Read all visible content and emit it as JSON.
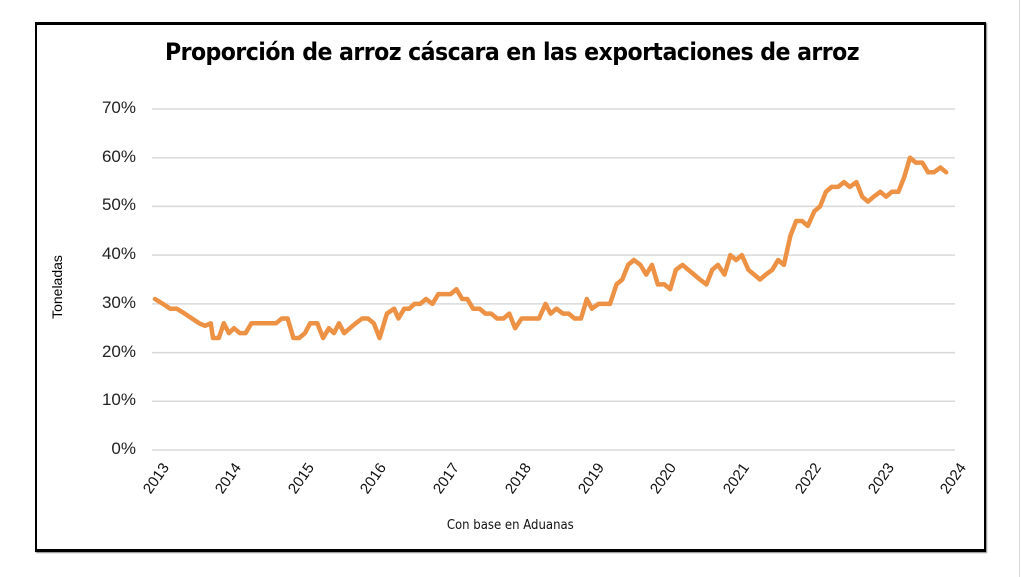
{
  "chart_data": {
    "type": "line",
    "title": "Proporción de arroz cáscara en las exportaciones de arroz",
    "xlabel": "Con base en Aduanas",
    "ylabel": "Toneladas",
    "ylim": [
      0,
      70
    ],
    "xlim": [
      2013,
      2024
    ],
    "grid": true,
    "legend": "none",
    "y_ticks": [
      "0%",
      "10%",
      "20%",
      "30%",
      "40%",
      "50%",
      "60%",
      "70%"
    ],
    "y_tick_values": [
      0,
      10,
      20,
      30,
      40,
      50,
      60,
      70
    ],
    "x_ticks": [
      "2013",
      "2014",
      "2015",
      "2016",
      "2017",
      "2018",
      "2019",
      "2020",
      "2021",
      "2022",
      "2023",
      "2024"
    ],
    "x_tick_values": [
      2013,
      2014,
      2015,
      2016,
      2017,
      2018,
      2019,
      2020,
      2021,
      2022,
      2023,
      2024
    ],
    "series": [
      {
        "name": "Proporción arroz cáscara (%)",
        "color": "#ED9145",
        "x": [
          2013.0,
          2013.11,
          2013.21,
          2013.3,
          2013.41,
          2013.51,
          2013.61,
          2013.69,
          2013.77,
          2013.8,
          2013.88,
          2013.95,
          2014.02,
          2014.09,
          2014.17,
          2014.25,
          2014.33,
          2014.42,
          2014.5,
          2014.58,
          2014.67,
          2014.75,
          2014.83,
          2014.91,
          2014.99,
          2015.07,
          2015.14,
          2015.24,
          2015.32,
          2015.4,
          2015.47,
          2015.54,
          2015.61,
          2015.69,
          2015.77,
          2015.86,
          2015.94,
          2016.02,
          2016.1,
          2016.2,
          2016.3,
          2016.36,
          2016.44,
          2016.51,
          2016.58,
          2016.66,
          2016.74,
          2016.83,
          2016.91,
          2016.99,
          2017.08,
          2017.16,
          2017.24,
          2017.31,
          2017.39,
          2017.48,
          2017.56,
          2017.64,
          2017.72,
          2017.81,
          2017.89,
          2017.97,
          2018.06,
          2018.14,
          2018.22,
          2018.3,
          2018.39,
          2018.46,
          2018.54,
          2018.63,
          2018.71,
          2018.79,
          2018.88,
          2018.96,
          2019.03,
          2019.12,
          2019.2,
          2019.28,
          2019.37,
          2019.45,
          2019.53,
          2019.61,
          2019.7,
          2019.78,
          2019.86,
          2019.94,
          2020.03,
          2020.11,
          2020.19,
          2020.28,
          2020.36,
          2020.44,
          2020.52,
          2020.61,
          2020.69,
          2020.77,
          2020.86,
          2020.94,
          2021.02,
          2021.1,
          2021.19,
          2021.27,
          2021.35,
          2021.43,
          2021.52,
          2021.6,
          2021.68,
          2021.77,
          2021.85,
          2021.93,
          2022.01,
          2022.1,
          2022.18,
          2022.26,
          2022.34,
          2022.43,
          2022.51,
          2022.59,
          2022.68,
          2022.76,
          2022.84,
          2022.92,
          2023.01,
          2023.09,
          2023.17,
          2023.26,
          2023.34,
          2023.42,
          2023.5,
          2023.59,
          2023.67,
          2023.75,
          2023.84,
          2023.92
        ],
        "values": [
          31,
          30,
          29,
          29,
          28,
          27,
          26,
          25.5,
          26,
          23,
          23,
          26,
          24,
          25,
          24,
          24,
          26,
          26,
          26,
          26,
          26,
          27,
          27,
          23,
          23,
          24,
          26,
          26,
          23,
          25,
          24,
          26,
          24,
          25,
          26,
          27,
          27,
          26,
          23,
          28,
          29,
          27,
          29,
          29,
          30,
          30,
          31,
          30,
          32,
          32,
          32,
          33,
          31,
          31,
          29,
          29,
          28,
          28,
          27,
          27,
          28,
          25,
          27,
          27,
          27,
          27,
          30,
          28,
          29,
          28,
          28,
          27,
          27,
          31,
          29,
          30,
          30,
          30,
          34,
          35,
          38,
          39,
          38,
          36,
          38,
          34,
          34,
          33,
          37,
          38,
          37,
          36,
          35,
          34,
          37,
          38,
          36,
          40,
          39,
          40,
          37,
          36,
          35,
          36,
          37,
          39,
          38,
          44,
          47,
          47,
          46,
          49,
          50,
          53,
          54,
          54,
          55,
          54,
          55,
          52,
          51,
          52,
          53,
          52,
          53,
          53,
          56,
          60,
          59,
          59,
          57,
          57,
          58,
          57
        ]
      }
    ]
  }
}
